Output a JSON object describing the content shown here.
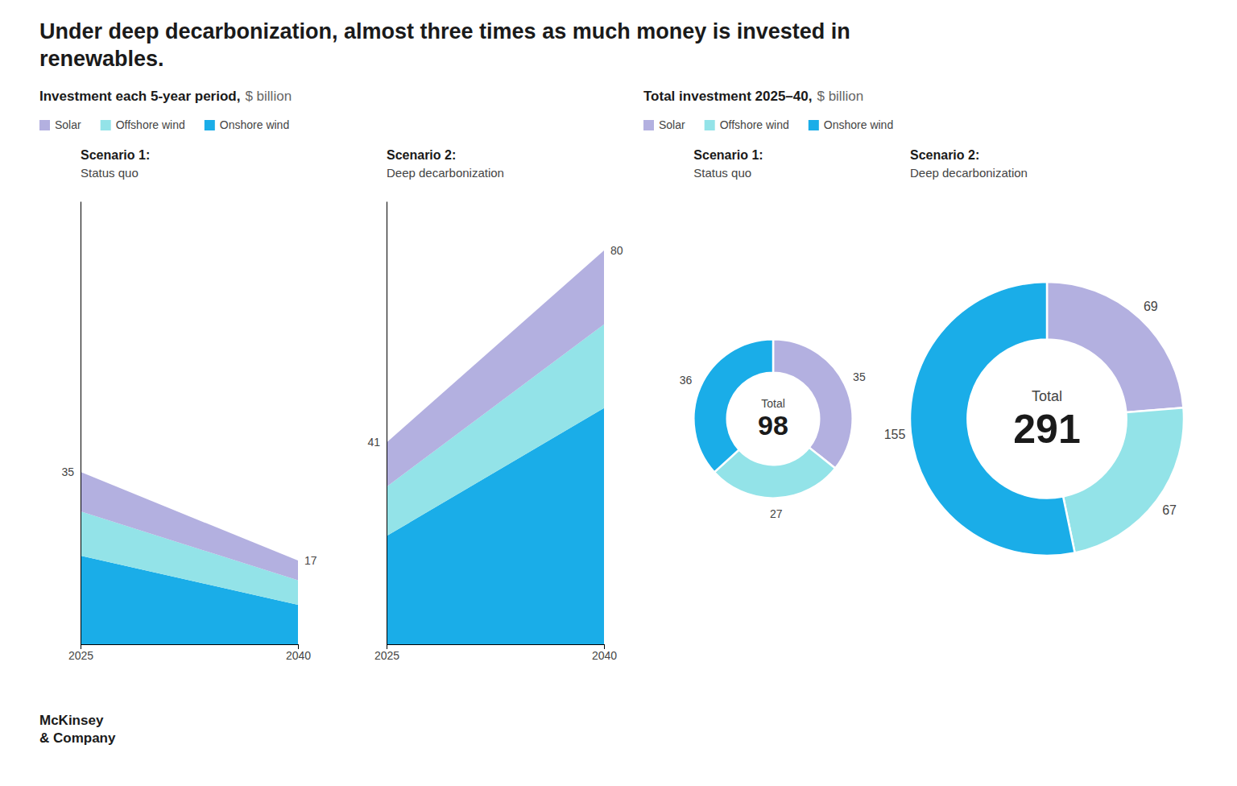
{
  "title": [
    "Under deep decarbonization, almost three times as much money is invested in",
    "renewables."
  ],
  "sections": [
    {
      "title": "Investment each 5-year period,",
      "unit": "$ billion"
    },
    {
      "title": "Total investment 2025–40,",
      "unit": "$ billion"
    }
  ],
  "footer": [
    "McKinsey",
    "& Company"
  ],
  "chart_data": [
    {
      "type": "area",
      "stacked": true,
      "title": "Scenario 1:",
      "subtitle": "Status quo",
      "x": [
        2025,
        2040
      ],
      "series": [
        {
          "name": "Onshore wind",
          "color": "#1aade8",
          "values": [
            18,
            8
          ]
        },
        {
          "name": "Offshore wind",
          "color": "#93e3e8",
          "values": [
            9,
            5
          ]
        },
        {
          "name": "Solar",
          "color": "#b3b0e0",
          "values": [
            8,
            4
          ]
        }
      ],
      "totals": [
        35,
        17
      ],
      "xlim": [
        2025,
        2040
      ],
      "xticks": [
        2025,
        2040
      ],
      "ylim": [
        0,
        90
      ],
      "tick_labels": "x",
      "legend": "top"
    },
    {
      "type": "area",
      "stacked": true,
      "title": "Scenario 2:",
      "subtitle": "Deep decarbonization",
      "x": [
        2025,
        2040
      ],
      "series": [
        {
          "name": "Onshore wind",
          "color": "#1aade8",
          "values": [
            22,
            48
          ]
        },
        {
          "name": "Offshore wind",
          "color": "#93e3e8",
          "values": [
            10,
            17
          ]
        },
        {
          "name": "Solar",
          "color": "#b3b0e0",
          "values": [
            9,
            15
          ]
        }
      ],
      "totals": [
        41,
        80
      ],
      "xlim": [
        2025,
        2040
      ],
      "xticks": [
        2025,
        2040
      ],
      "ylim": [
        0,
        90
      ],
      "tick_labels": "x"
    },
    {
      "type": "donut",
      "title": "Scenario 1:",
      "subtitle": "Status quo",
      "categories": [
        "Solar",
        "Offshore wind",
        "Onshore wind"
      ],
      "values": [
        35,
        27,
        36
      ],
      "colors": [
        "#b3b0e0",
        "#93e3e8",
        "#1aade8"
      ],
      "data_labels": true,
      "center_label": "Total",
      "total": 98,
      "legend": "top"
    },
    {
      "type": "donut",
      "title": "Scenario 2:",
      "subtitle": "Deep decarbonization",
      "categories": [
        "Solar",
        "Offshore wind",
        "Onshore wind"
      ],
      "values": [
        69,
        67,
        155
      ],
      "colors": [
        "#b3b0e0",
        "#93e3e8",
        "#1aade8"
      ],
      "data_labels": true,
      "center_label": "Total",
      "total": 291
    }
  ]
}
